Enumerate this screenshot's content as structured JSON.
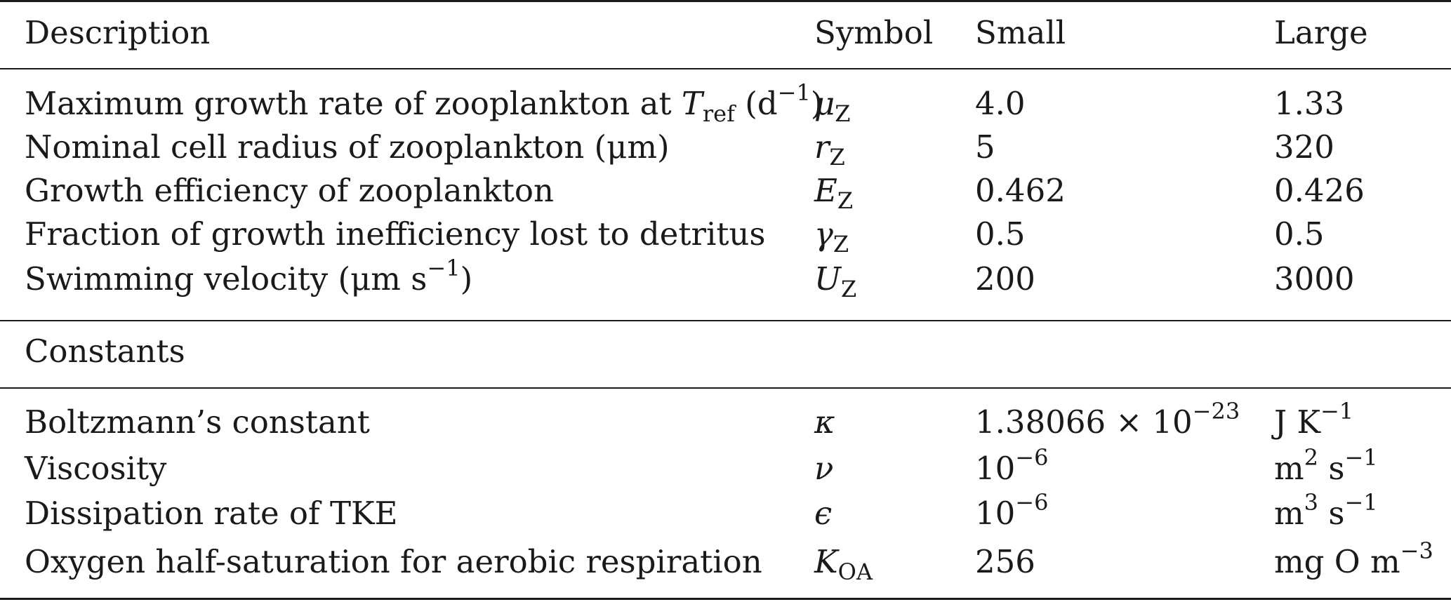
{
  "header": {
    "description": "Description",
    "symbol": "Symbol",
    "small": "Small",
    "large": "Large"
  },
  "zooplankton_rows": [
    {
      "description_main": "Maximum growth rate of zooplankton at ",
      "description_var": "T",
      "description_var_sub": "ref",
      "description_unit_open": " (d",
      "description_unit_sup": "−1",
      "description_unit_close": ")",
      "symbol_main": "μ",
      "symbol_sub": "Z",
      "small": "4.0",
      "large": "1.33"
    },
    {
      "description": "Nominal cell radius of zooplankton (μm)",
      "symbol_main": "r",
      "symbol_sub": "Z",
      "small": "5",
      "large": "320"
    },
    {
      "description": "Growth efficiency of zooplankton",
      "symbol_main": "E",
      "symbol_sub": "Z",
      "small": "0.462",
      "large": "0.426"
    },
    {
      "description": "Fraction of growth inefficiency lost to detritus",
      "symbol_main": "γ",
      "symbol_sub": "Z",
      "small": "0.5",
      "large": "0.5"
    },
    {
      "description_main": "Swimming velocity (μm s",
      "description_sup": "−1",
      "description_close": ")",
      "symbol_main": "U",
      "symbol_sub": "Z",
      "small": "200",
      "large": "3000"
    }
  ],
  "constants_title": "Constants",
  "constants_rows": [
    {
      "description": "Boltzmann’s constant",
      "symbol": "κ",
      "value_main": "1.38066 × 10",
      "value_sup": "−23",
      "unit_main": "J K",
      "unit_sup": "−1"
    },
    {
      "description": "Viscosity",
      "symbol": "ν",
      "value_main": "10",
      "value_sup": "−6",
      "unit_a": "m",
      "unit_a_sup": "2",
      "unit_b": " s",
      "unit_b_sup": "−1"
    },
    {
      "description": "Dissipation rate of TKE",
      "symbol": "ϵ",
      "value_main": "10",
      "value_sup": "−6",
      "unit_a": "m",
      "unit_a_sup": "3",
      "unit_b": " s",
      "unit_b_sup": "−1"
    },
    {
      "description": "Oxygen half-saturation for aerobic respiration",
      "symbol_main": "K",
      "symbol_sub": "OA",
      "value": "256",
      "unit_main": "mg O m",
      "unit_sup": "−3"
    }
  ]
}
